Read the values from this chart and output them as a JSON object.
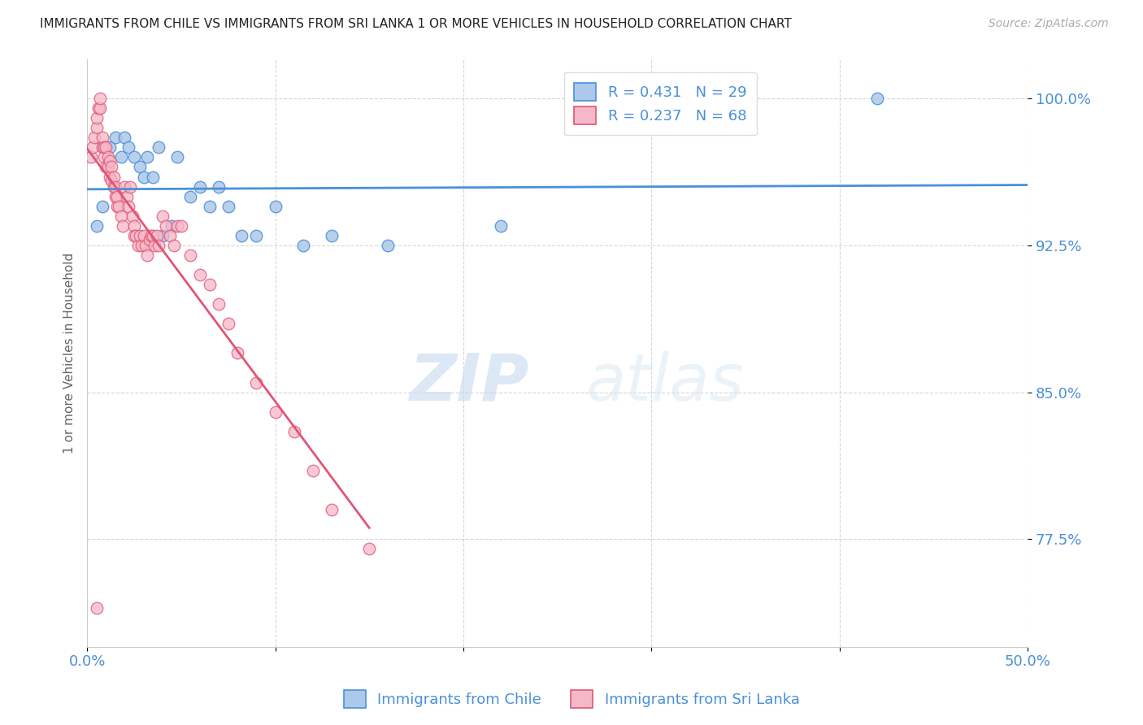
{
  "title": "IMMIGRANTS FROM CHILE VS IMMIGRANTS FROM SRI LANKA 1 OR MORE VEHICLES IN HOUSEHOLD CORRELATION CHART",
  "source": "Source: ZipAtlas.com",
  "ylabel": "1 or more Vehicles in Household",
  "xlim": [
    0.0,
    0.5
  ],
  "ylim": [
    0.72,
    1.02
  ],
  "xticks": [
    0.0,
    0.1,
    0.2,
    0.3,
    0.4,
    0.5
  ],
  "xtick_labels": [
    "0.0%",
    "",
    "",
    "",
    "",
    "50.0%"
  ],
  "ytick_labels": [
    "77.5%",
    "85.0%",
    "92.5%",
    "100.0%"
  ],
  "yticks": [
    0.775,
    0.85,
    0.925,
    1.0
  ],
  "legend_r1": "R = 0.431",
  "legend_n1": "N = 29",
  "legend_r2": "R = 0.237",
  "legend_n2": "N = 68",
  "chile_color": "#adc8e8",
  "srilanka_color": "#f5b8c8",
  "chile_line_color": "#4a90d9",
  "srilanka_line_color": "#e05575",
  "chile_scatter_x": [
    0.005,
    0.008,
    0.012,
    0.015,
    0.018,
    0.02,
    0.022,
    0.025,
    0.028,
    0.03,
    0.032,
    0.035,
    0.038,
    0.04,
    0.045,
    0.048,
    0.055,
    0.06,
    0.065,
    0.07,
    0.075,
    0.082,
    0.09,
    0.1,
    0.115,
    0.13,
    0.16,
    0.22,
    0.42
  ],
  "chile_scatter_y": [
    0.935,
    0.945,
    0.975,
    0.98,
    0.97,
    0.98,
    0.975,
    0.97,
    0.965,
    0.96,
    0.97,
    0.96,
    0.975,
    0.93,
    0.935,
    0.97,
    0.95,
    0.955,
    0.945,
    0.955,
    0.945,
    0.93,
    0.93,
    0.945,
    0.925,
    0.93,
    0.925,
    0.935,
    1.0
  ],
  "srilanka_scatter_x": [
    0.002,
    0.003,
    0.004,
    0.005,
    0.005,
    0.006,
    0.007,
    0.007,
    0.008,
    0.008,
    0.009,
    0.009,
    0.01,
    0.01,
    0.011,
    0.011,
    0.012,
    0.012,
    0.013,
    0.013,
    0.014,
    0.014,
    0.015,
    0.015,
    0.016,
    0.016,
    0.017,
    0.018,
    0.019,
    0.02,
    0.021,
    0.022,
    0.023,
    0.024,
    0.025,
    0.025,
    0.026,
    0.027,
    0.028,
    0.029,
    0.03,
    0.031,
    0.032,
    0.033,
    0.034,
    0.035,
    0.036,
    0.037,
    0.038,
    0.04,
    0.042,
    0.044,
    0.046,
    0.048,
    0.05,
    0.055,
    0.06,
    0.065,
    0.07,
    0.075,
    0.08,
    0.09,
    0.1,
    0.11,
    0.12,
    0.13,
    0.15,
    0.005
  ],
  "srilanka_scatter_y": [
    0.97,
    0.975,
    0.98,
    0.985,
    0.99,
    0.995,
    0.995,
    1.0,
    0.975,
    0.98,
    0.97,
    0.975,
    0.965,
    0.975,
    0.965,
    0.97,
    0.96,
    0.968,
    0.958,
    0.965,
    0.955,
    0.96,
    0.95,
    0.955,
    0.945,
    0.95,
    0.945,
    0.94,
    0.935,
    0.955,
    0.95,
    0.945,
    0.955,
    0.94,
    0.935,
    0.93,
    0.93,
    0.925,
    0.93,
    0.925,
    0.93,
    0.925,
    0.92,
    0.928,
    0.93,
    0.93,
    0.925,
    0.93,
    0.925,
    0.94,
    0.935,
    0.93,
    0.925,
    0.935,
    0.935,
    0.92,
    0.91,
    0.905,
    0.895,
    0.885,
    0.87,
    0.855,
    0.84,
    0.83,
    0.81,
    0.79,
    0.77,
    0.74
  ],
  "watermark_zip": "ZIP",
  "watermark_atlas": "atlas",
  "background_color": "#ffffff",
  "grid_color": "#cccccc"
}
